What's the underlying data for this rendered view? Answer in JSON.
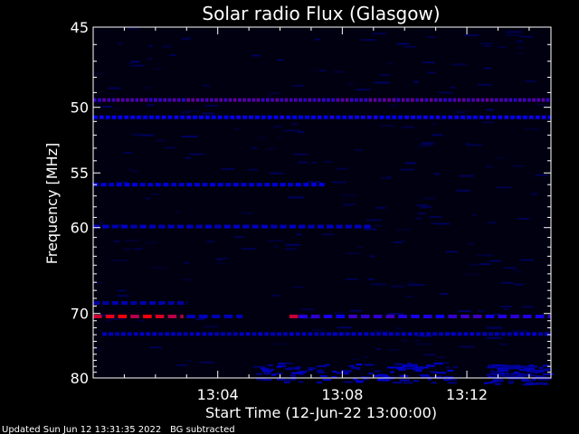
{
  "chart_data": {
    "type": "heatmap",
    "title": "Solar radio Flux (Glasgow)",
    "xlabel": "Start Time (12-Jun-22 13:00:00)",
    "ylabel": "Frequency [MHz]",
    "x_ticks": [
      "13:04",
      "13:08",
      "13:12"
    ],
    "x_tick_minutes": [
      4,
      8,
      12
    ],
    "xlim_minutes": [
      0,
      14.7
    ],
    "y_ticks": [
      45,
      50,
      55,
      60,
      70,
      80
    ],
    "ylim": [
      45,
      80
    ],
    "colormap": [
      "#000000",
      "#0000ff",
      "#ff0000"
    ],
    "features": [
      {
        "kind": "band",
        "freq_mhz": 49.5,
        "t_start": 0.0,
        "t_end": 14.7,
        "intensity": 0.7,
        "dash": 0.15
      },
      {
        "kind": "band",
        "freq_mhz": 50.7,
        "t_start": 0.0,
        "t_end": 14.7,
        "intensity": 0.55,
        "dash": 0.2
      },
      {
        "kind": "band",
        "freq_mhz": 56.0,
        "t_start": 0.0,
        "t_end": 7.5,
        "intensity": 0.45,
        "dash": 0.25
      },
      {
        "kind": "band",
        "freq_mhz": 59.9,
        "t_start": 0.0,
        "t_end": 9.0,
        "intensity": 0.4,
        "dash": 0.3
      },
      {
        "kind": "band",
        "freq_mhz": 68.6,
        "t_start": 0.0,
        "t_end": 3.0,
        "intensity": 0.35,
        "dash": 0.3
      },
      {
        "kind": "band",
        "freq_mhz": 70.4,
        "t_start": 0.0,
        "t_end": 2.9,
        "intensity": 1.0,
        "dash": 0.4
      },
      {
        "kind": "band",
        "freq_mhz": 70.4,
        "t_start": 3.0,
        "t_end": 4.8,
        "intensity": 0.4,
        "dash": 0.4
      },
      {
        "kind": "band",
        "freq_mhz": 70.4,
        "t_start": 6.3,
        "t_end": 6.6,
        "intensity": 1.0,
        "dash": 0.4
      },
      {
        "kind": "band",
        "freq_mhz": 70.4,
        "t_start": 6.6,
        "t_end": 14.7,
        "intensity": 0.62,
        "dash": 0.4
      },
      {
        "kind": "band",
        "freq_mhz": 72.9,
        "t_start": 0.3,
        "t_end": 14.7,
        "intensity": 0.4,
        "dash": 0.2
      },
      {
        "kind": "patch",
        "freq_mhz": 79.0,
        "t_start": 5.2,
        "t_end": 11.5,
        "intensity": 0.45
      },
      {
        "kind": "patch",
        "freq_mhz": 79.3,
        "t_start": 12.5,
        "t_end": 14.5,
        "intensity": 0.4
      }
    ]
  },
  "footer": {
    "updated": "Updated Sun Jun 12 13:31:35 2022",
    "note": "BG subtracted"
  }
}
